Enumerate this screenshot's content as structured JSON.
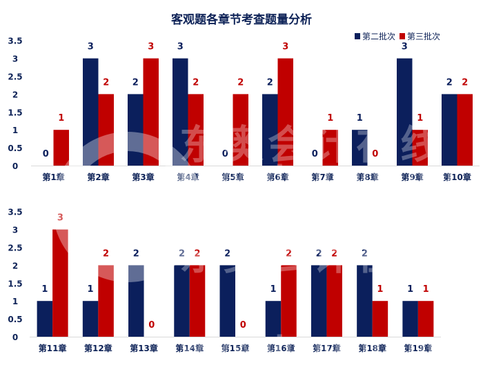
{
  "colors": {
    "series1": "#0b1f5c",
    "series2": "#c00000",
    "axis_text": "#0d2257"
  },
  "watermark": {
    "text": "东奥会计在线",
    "url": "www.dongao.com"
  },
  "chart_data": [
    {
      "type": "bar",
      "title": "客观题各章节考查题量分析",
      "legend_position": "top-right",
      "ylim": [
        0,
        3.5
      ],
      "yticks": [
        "0",
        "0.5",
        "1",
        "1.5",
        "2",
        "2.5",
        "3",
        "3.5"
      ],
      "grid": false,
      "categories": [
        "第1章",
        "第2章",
        "第3章",
        "第4章",
        "第5章",
        "第6章",
        "第7章",
        "第8章",
        "第9章",
        "第10章"
      ],
      "series": [
        {
          "name": "第二批次",
          "values": [
            0,
            3,
            2,
            3,
            0,
            2,
            0,
            1,
            3,
            2
          ]
        },
        {
          "name": "第三批次",
          "values": [
            1,
            2,
            3,
            2,
            2,
            3,
            1,
            0,
            1,
            2
          ]
        }
      ]
    },
    {
      "type": "bar",
      "ylim": [
        0,
        3.5
      ],
      "yticks": [
        "0",
        "0.5",
        "1",
        "1.5",
        "2",
        "2.5",
        "3",
        "3.5"
      ],
      "grid": false,
      "categories": [
        "第11章",
        "第12章",
        "第13章",
        "第14章",
        "第15章",
        "第16章",
        "第17章",
        "第18章",
        "第19章"
      ],
      "series": [
        {
          "name": "第二批次",
          "values": [
            1,
            1,
            2,
            2,
            2,
            1,
            2,
            2,
            1
          ]
        },
        {
          "name": "第三批次",
          "values": [
            3,
            2,
            0,
            2,
            0,
            2,
            2,
            1,
            1
          ]
        }
      ]
    }
  ]
}
